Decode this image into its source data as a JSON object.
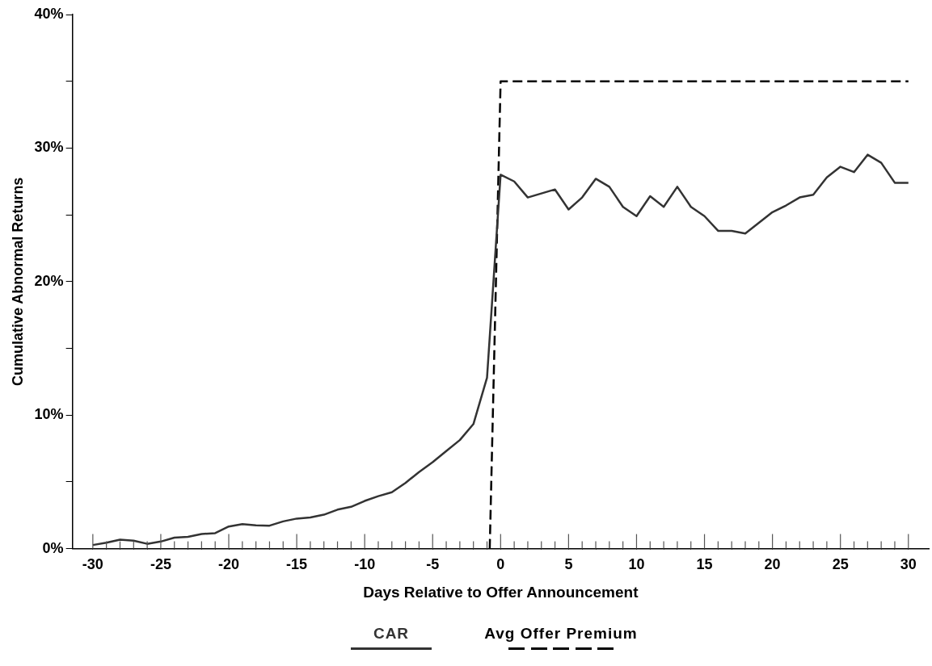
{
  "chart_data": {
    "type": "line",
    "xlabel": "Days Relative to Offer Announcement",
    "ylabel": "Cumulative Abnormal Returns",
    "x": [
      -30,
      -29,
      -28,
      -27,
      -26,
      -25,
      -24,
      -23,
      -22,
      -21,
      -20,
      -19,
      -18,
      -17,
      -16,
      -15,
      -14,
      -13,
      -12,
      -11,
      -10,
      -9,
      -8,
      -7,
      -6,
      -5,
      -4,
      -3,
      -2,
      -1,
      0,
      1,
      2,
      3,
      4,
      5,
      6,
      7,
      8,
      9,
      10,
      11,
      12,
      13,
      14,
      15,
      16,
      17,
      18,
      19,
      20,
      21,
      22,
      23,
      24,
      25,
      26,
      27,
      28,
      29,
      30
    ],
    "series": [
      {
        "name": "CAR",
        "color": "#333333",
        "line_style": "solid",
        "values": [
          0.27,
          0.44,
          0.67,
          0.59,
          0.36,
          0.53,
          0.82,
          0.88,
          1.09,
          1.16,
          1.66,
          1.83,
          1.74,
          1.72,
          2.04,
          2.25,
          2.33,
          2.54,
          2.92,
          3.13,
          3.57,
          3.93,
          4.22,
          4.92,
          5.74,
          6.47,
          7.31,
          8.13,
          9.33,
          12.8,
          28.0,
          27.5,
          26.3,
          26.6,
          26.9,
          25.4,
          26.3,
          27.7,
          27.1,
          25.6,
          24.9,
          26.4,
          25.6,
          27.1,
          25.6,
          24.9,
          23.8,
          23.8,
          23.6,
          24.4,
          25.2,
          25.7,
          26.3,
          26.5,
          27.8,
          28.6,
          28.2,
          29.5,
          28.9,
          27.4,
          27.4
        ]
      },
      {
        "name": "Avg Offer Premium",
        "color": "#000000",
        "line_style": "dashed",
        "x": [
          -0.8,
          0,
          30
        ],
        "values": [
          0,
          35,
          35
        ]
      }
    ],
    "xlim": [
      -31.5,
      31.5
    ],
    "xticks": [
      -30,
      {
        "value": -29,
        "label": null
      },
      {
        "value": -28,
        "label": null
      },
      {
        "value": -27,
        "label": null
      },
      {
        "value": -26,
        "label": null
      },
      -25,
      {
        "value": -24,
        "label": null
      },
      {
        "value": -23,
        "label": null
      },
      {
        "value": -22,
        "label": null
      },
      {
        "value": -21,
        "label": null
      },
      -20,
      {
        "value": -19,
        "label": null
      },
      {
        "value": -18,
        "label": null
      },
      {
        "value": -17,
        "label": null
      },
      {
        "value": -16,
        "label": null
      },
      -15,
      {
        "value": -14,
        "label": null
      },
      {
        "value": -13,
        "label": null
      },
      {
        "value": -12,
        "label": null
      },
      {
        "value": -11,
        "label": null
      },
      -10,
      {
        "value": -9,
        "label": null
      },
      {
        "value": -8,
        "label": null
      },
      {
        "value": -7,
        "label": null
      },
      {
        "value": -6,
        "label": null
      },
      -5,
      {
        "value": -4,
        "label": null
      },
      {
        "value": -3,
        "label": null
      },
      {
        "value": -2,
        "label": null
      },
      {
        "value": -1,
        "label": null
      },
      0,
      {
        "value": 1,
        "label": null
      },
      {
        "value": 2,
        "label": null
      },
      {
        "value": 3,
        "label": null
      },
      {
        "value": 4,
        "label": null
      },
      5,
      {
        "value": 6,
        "label": null
      },
      {
        "value": 7,
        "label": null
      },
      {
        "value": 8,
        "label": null
      },
      {
        "value": 9,
        "label": null
      },
      10,
      {
        "value": 11,
        "label": null
      },
      {
        "value": 12,
        "label": null
      },
      {
        "value": 13,
        "label": null
      },
      {
        "value": 14,
        "label": null
      },
      15,
      {
        "value": 16,
        "label": null
      },
      {
        "value": 17,
        "label": null
      },
      {
        "value": 18,
        "label": null
      },
      {
        "value": 19,
        "label": null
      },
      20,
      {
        "value": 21,
        "label": null
      },
      {
        "value": 22,
        "label": null
      },
      {
        "value": 23,
        "label": null
      },
      {
        "value": 24,
        "label": null
      },
      25,
      {
        "value": 26,
        "label": null
      },
      {
        "value": 27,
        "label": null
      },
      {
        "value": 28,
        "label": null
      },
      {
        "value": 29,
        "label": null
      },
      30
    ],
    "ylim": [
      0,
      40
    ],
    "yticks": [
      {
        "value": 0,
        "label": "0%"
      },
      {
        "value": 5,
        "label": null
      },
      {
        "value": 10,
        "label": "10%"
      },
      {
        "value": 15,
        "label": null
      },
      {
        "value": 20,
        "label": "20%"
      },
      {
        "value": 25,
        "label": null
      },
      {
        "value": 30,
        "label": "30%"
      },
      {
        "value": 35,
        "label": null
      },
      {
        "value": 40,
        "label": "40%"
      }
    ],
    "grid": false,
    "legend": "bottom",
    "marker": "none"
  }
}
